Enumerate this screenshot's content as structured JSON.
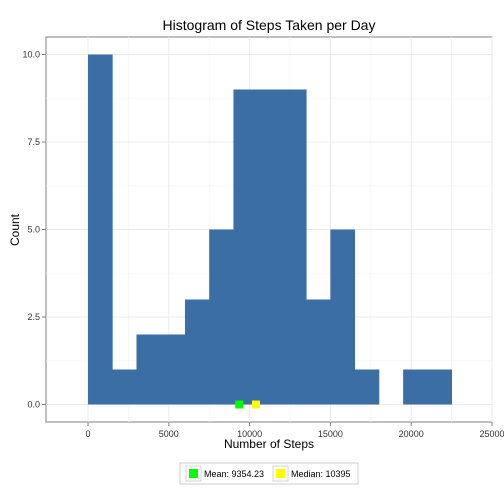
{
  "chart_data": {
    "type": "bar",
    "title": "Histogram of Steps Taken per Day",
    "xlabel": "Number of Steps",
    "ylabel": "Count",
    "xlim": [
      -2600,
      25000
    ],
    "ylim": [
      -0.5,
      10.5
    ],
    "x_ticks": [
      0,
      5000,
      10000,
      15000,
      20000,
      25000
    ],
    "x_tick_labels": [
      "0",
      "5000",
      "10000",
      "15000",
      "20000",
      "25000"
    ],
    "y_ticks": [
      0,
      2.5,
      5,
      7.5,
      10
    ],
    "y_tick_labels": [
      "0.0",
      "2.5",
      "5.0",
      "7.5",
      "10.0"
    ],
    "bin_width": 1500,
    "bins": [
      {
        "start": 0,
        "end": 1500,
        "count": 10
      },
      {
        "start": 1500,
        "end": 3000,
        "count": 1
      },
      {
        "start": 3000,
        "end": 4500,
        "count": 2
      },
      {
        "start": 4500,
        "end": 6000,
        "count": 2
      },
      {
        "start": 6000,
        "end": 7500,
        "count": 3
      },
      {
        "start": 7500,
        "end": 9000,
        "count": 5
      },
      {
        "start": 9000,
        "end": 10500,
        "count": 9
      },
      {
        "start": 10500,
        "end": 12000,
        "count": 9
      },
      {
        "start": 12000,
        "end": 13500,
        "count": 9
      },
      {
        "start": 13500,
        "end": 15000,
        "count": 3
      },
      {
        "start": 15000,
        "end": 16500,
        "count": 5
      },
      {
        "start": 16500,
        "end": 18000,
        "count": 1
      },
      {
        "start": 18000,
        "end": 19500,
        "count": 0
      },
      {
        "start": 19500,
        "end": 21000,
        "count": 1
      },
      {
        "start": 21000,
        "end": 22500,
        "count": 1
      }
    ],
    "bar_color": "#3A6EA5",
    "grid": true,
    "legend_position": "bottom",
    "markers": [
      {
        "name": "Mean",
        "label": "Mean: 9354.23",
        "x": 9354.23,
        "y": 0,
        "color": "#00FF00"
      },
      {
        "name": "Median",
        "label": "Median: 10395",
        "x": 10395,
        "y": 0,
        "color": "#FFFF00"
      }
    ]
  }
}
